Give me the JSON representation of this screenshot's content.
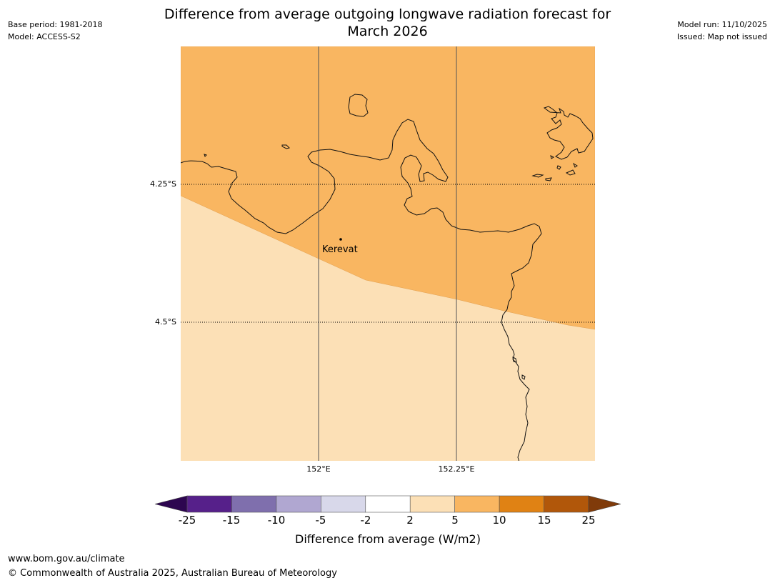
{
  "title_line1": "Difference from average outgoing longwave radiation forecast for",
  "title_line2": "March 2026",
  "base_period": "Base period: 1981-2018",
  "model": "Model: ACCESS-S2",
  "model_run": "Model run: 11/10/2025",
  "issued": "Issued: Map not issued",
  "map": {
    "lat_labels": [
      "4.25°S",
      "4.5°S"
    ],
    "lon_labels": [
      "152°E",
      "152.25°E"
    ],
    "place_name": "Kerevat",
    "zones": [
      {
        "category": "5 to 10",
        "color": "#f9b661"
      },
      {
        "category": "2 to 5",
        "color": "#fce0b6"
      }
    ]
  },
  "colorbar": {
    "label": "Difference from average (W/m2)",
    "ticks": [
      "-25",
      "-15",
      "-10",
      "-5",
      "-2",
      "2",
      "5",
      "10",
      "15",
      "25"
    ],
    "colors": [
      "#56208a",
      "#7f6fad",
      "#b0a7d1",
      "#d8d8ea",
      "#ffffff",
      "#fce0b6",
      "#f9b661",
      "#e08214",
      "#b1570a"
    ],
    "under_color": "#2d0650",
    "over_color": "#803b0a"
  },
  "footer": {
    "url": "www.bom.gov.au/climate",
    "copyright": "© Commonwealth of Australia 2025, Australian Bureau of Meteorology"
  }
}
